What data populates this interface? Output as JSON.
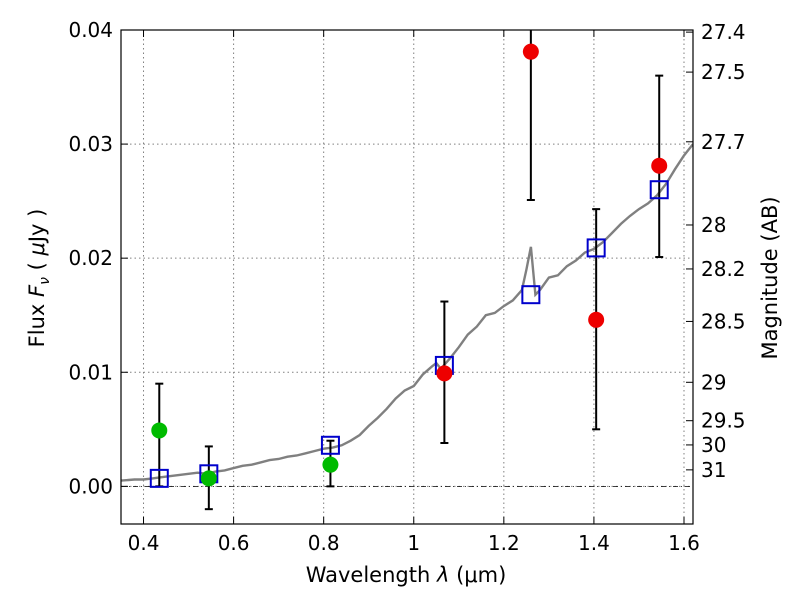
{
  "chart_data": {
    "type": "scatter",
    "xlabel": "Wavelength  λ (μm)",
    "ylabel": "Flux  F_ν  ( μJy )",
    "ylabel_parts": {
      "pre": "Flux ",
      "var": "F",
      "sub": "ν",
      "unit_open": " ( ",
      "mu": "μ",
      "unit": "Jy )"
    },
    "xlabel_parts": {
      "pre": "Wavelength  ",
      "var": "λ",
      "unit": " (μm)"
    },
    "y2label": "Magnitude (AB)",
    "xlim": [
      0.35,
      1.62
    ],
    "ylim": [
      -0.0033,
      0.04
    ],
    "grid": true,
    "x_ticks": [
      0.4,
      0.6,
      0.8,
      1.0,
      1.2,
      1.4,
      1.6
    ],
    "x_tick_labels": [
      "0.4",
      "0.6",
      "0.8",
      "1",
      "1.2",
      "1.4",
      "1.6"
    ],
    "y_ticks": [
      0.0,
      0.01,
      0.02,
      0.03,
      0.04
    ],
    "y_tick_labels": [
      "0.00",
      "0.01",
      "0.02",
      "0.03",
      "0.04"
    ],
    "y2_ticks": [
      {
        "label": "27.4",
        "mag": 27.4
      },
      {
        "label": "27.5",
        "mag": 27.5
      },
      {
        "label": "27.7",
        "mag": 27.7
      },
      {
        "label": "28",
        "mag": 28.0
      },
      {
        "label": "28.2",
        "mag": 28.2
      },
      {
        "label": "28.5",
        "mag": 28.5
      },
      {
        "label": "29",
        "mag": 29.0
      },
      {
        "label": "29.5",
        "mag": 29.5
      },
      {
        "label": "30",
        "mag": 30.0
      },
      {
        "label": "31",
        "mag": 31.0
      }
    ],
    "series": [
      {
        "kind": "model_spectrum",
        "color": "#808080",
        "x": [
          0.35,
          0.38,
          0.4,
          0.42,
          0.44,
          0.46,
          0.48,
          0.5,
          0.52,
          0.54,
          0.56,
          0.58,
          0.6,
          0.62,
          0.64,
          0.66,
          0.68,
          0.7,
          0.72,
          0.74,
          0.76,
          0.78,
          0.8,
          0.82,
          0.84,
          0.86,
          0.88,
          0.9,
          0.92,
          0.94,
          0.96,
          0.98,
          1.0,
          1.02,
          1.04,
          1.05,
          1.06,
          1.08,
          1.1,
          1.12,
          1.14,
          1.16,
          1.18,
          1.2,
          1.22,
          1.24,
          1.25,
          1.26,
          1.27,
          1.28,
          1.3,
          1.32,
          1.34,
          1.36,
          1.38,
          1.4,
          1.42,
          1.44,
          1.46,
          1.48,
          1.5,
          1.52,
          1.54,
          1.56,
          1.58,
          1.6,
          1.62
        ],
        "y": [
          0.0005,
          0.0006,
          0.0006,
          0.0007,
          0.0008,
          0.0009,
          0.001,
          0.0011,
          0.0012,
          0.0011,
          0.0013,
          0.0014,
          0.0016,
          0.0018,
          0.0019,
          0.0021,
          0.0023,
          0.0024,
          0.0026,
          0.0027,
          0.0029,
          0.0031,
          0.0033,
          0.0034,
          0.0036,
          0.004,
          0.0045,
          0.0053,
          0.006,
          0.0068,
          0.0077,
          0.0084,
          0.0088,
          0.0098,
          0.0105,
          0.0108,
          0.0103,
          0.0112,
          0.0122,
          0.0133,
          0.014,
          0.015,
          0.0152,
          0.0158,
          0.0163,
          0.0172,
          0.019,
          0.021,
          0.0168,
          0.0172,
          0.0183,
          0.0185,
          0.0193,
          0.0198,
          0.0205,
          0.0208,
          0.0214,
          0.0222,
          0.023,
          0.0237,
          0.0243,
          0.0248,
          0.0255,
          0.0265,
          0.0278,
          0.029,
          0.03
        ]
      },
      {
        "kind": "model_bands",
        "marker": "square",
        "color": "#0000cc",
        "x": [
          0.435,
          0.545,
          0.815,
          1.068,
          1.26,
          1.405,
          1.545
        ],
        "y": [
          0.0007,
          0.0011,
          0.0036,
          0.0106,
          0.0168,
          0.0209,
          0.026
        ]
      },
      {
        "kind": "detections_blue",
        "marker": "circle",
        "color": "#00bb00",
        "x": [
          0.435,
          0.545,
          0.815
        ],
        "y": [
          0.0049,
          0.0007,
          0.0019
        ],
        "err_low": [
          0.0049,
          0.0027,
          0.0019
        ],
        "err_high": [
          0.0041,
          0.0028,
          0.0021
        ]
      },
      {
        "kind": "detections_red",
        "marker": "circle",
        "color": "#ee0000",
        "x": [
          1.068,
          1.26,
          1.405,
          1.545
        ],
        "y": [
          0.0099,
          0.0381,
          0.0146,
          0.0281
        ],
        "err_low": [
          0.0061,
          0.013,
          0.0096,
          0.008
        ],
        "err_high": [
          0.0063,
          0.003,
          0.0097,
          0.0079
        ]
      }
    ]
  },
  "colors": {
    "grid": "#808080",
    "spectrum": "#808080",
    "square": "#0000cc",
    "green": "#00bb00",
    "red": "#ee0000",
    "zero_line": "#000000"
  }
}
